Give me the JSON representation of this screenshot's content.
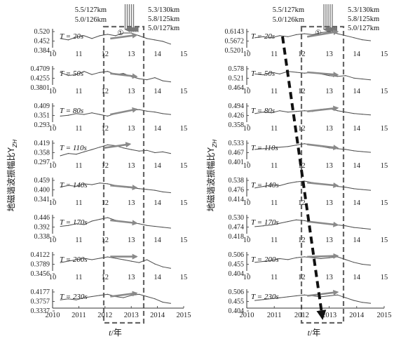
{
  "chart_data": [
    {
      "type": "line",
      "panel": "left",
      "y_axis_label": "地磁谐波振幅比Y",
      "y_axis_subscript": "ZH",
      "x_axis_label_var": "t",
      "x_axis_label_unit": "/年",
      "x_ticks": [
        "10",
        "11",
        "12",
        "13",
        "14",
        "15"
      ],
      "bottom_x_ticks": [
        "2010",
        "2011",
        "2012",
        "2013",
        "2014",
        "2015"
      ],
      "window": [
        2011.9,
        2013.6
      ],
      "circle_label": "①",
      "annotations_left": [
        "5.5/127km",
        "5.0/126km"
      ],
      "annotations_right": [
        "5.3/130km",
        "5.8/125km",
        "5.0/127km"
      ],
      "subplots": [
        {
          "T": "T = 20s",
          "yticks": [
            "0.520",
            "0.452",
            "0.384"
          ],
          "ylim": [
            0.384,
            0.52
          ],
          "x": [
            2010.3,
            2010.6,
            2010.9,
            2011.2,
            2011.5,
            2011.8,
            2012.1,
            2012.4,
            2012.7,
            2013.0,
            2013.3,
            2013.6,
            2013.9,
            2014.2,
            2014.5
          ],
          "y": [
            0.45,
            0.44,
            0.46,
            0.47,
            0.45,
            0.47,
            0.48,
            0.47,
            0.49,
            0.49,
            0.47,
            0.45,
            0.44,
            0.43,
            0.41
          ],
          "arrow": {
            "from": [
              2012.2,
              0.45
            ],
            "to": [
              2013.2,
              0.475
            ]
          }
        },
        {
          "T": "T = 50s",
          "yticks": [
            "0.4709",
            "0.4255",
            "0.3801"
          ],
          "ylim": [
            0.3801,
            0.4709
          ],
          "x": [
            2010.3,
            2010.6,
            2010.9,
            2011.2,
            2011.5,
            2011.8,
            2012.1,
            2012.4,
            2012.7,
            2013.0,
            2013.3,
            2013.6,
            2013.9,
            2014.2,
            2014.5
          ],
          "y": [
            0.44,
            0.425,
            0.43,
            0.445,
            0.43,
            0.44,
            0.445,
            0.43,
            0.435,
            0.42,
            0.41,
            0.405,
            0.415,
            0.4,
            0.395
          ],
          "arrow": {
            "from": [
              2012.2,
              0.435
            ],
            "to": [
              2013.2,
              0.42
            ]
          }
        },
        {
          "T": "T = 80s",
          "yticks": [
            "0.409",
            "0.351",
            "0.293"
          ],
          "ylim": [
            0.293,
            0.409
          ],
          "x": [
            2010.3,
            2010.6,
            2010.9,
            2011.2,
            2011.5,
            2011.8,
            2012.1,
            2012.4,
            2012.7,
            2013.0,
            2013.3,
            2013.6,
            2013.9,
            2014.2,
            2014.5
          ],
          "y": [
            0.33,
            0.335,
            0.345,
            0.34,
            0.35,
            0.34,
            0.33,
            0.345,
            0.355,
            0.365,
            0.37,
            0.36,
            0.355,
            0.345,
            0.34
          ],
          "arrow": {
            "from": [
              2012.2,
              0.34
            ],
            "to": [
              2013.2,
              0.372
            ]
          }
        },
        {
          "T": "T = 110s",
          "yticks": [
            "0.419",
            "0.358",
            "0.297"
          ],
          "ylim": [
            0.297,
            0.419
          ],
          "x": [
            2010.3,
            2010.6,
            2010.9,
            2011.2,
            2011.5,
            2011.8,
            2012.1,
            2012.4,
            2012.7,
            2013.0,
            2013.3,
            2013.6,
            2013.9,
            2014.2,
            2014.5
          ],
          "y": [
            0.32,
            0.335,
            0.33,
            0.345,
            0.36,
            0.375,
            0.39,
            0.385,
            0.37,
            0.36,
            0.35,
            0.355,
            0.34,
            0.345,
            0.335
          ],
          "arrow": {
            "from": [
              2011.95,
              0.37
            ],
            "to": [
              2012.95,
              0.395
            ]
          }
        },
        {
          "T": "T = 140s",
          "yticks": [
            "0.459",
            "0.400",
            "0.341"
          ],
          "ylim": [
            0.341,
            0.459
          ],
          "x": [
            2010.3,
            2010.6,
            2010.9,
            2011.2,
            2011.5,
            2011.8,
            2012.1,
            2012.4,
            2012.7,
            2013.0,
            2013.3,
            2013.6,
            2013.9,
            2014.2,
            2014.5
          ],
          "y": [
            0.4,
            0.41,
            0.405,
            0.42,
            0.415,
            0.425,
            0.42,
            0.41,
            0.4,
            0.395,
            0.39,
            0.385,
            0.38,
            0.37,
            0.365
          ],
          "arrow": {
            "from": [
              2012.2,
              0.41
            ],
            "to": [
              2013.2,
              0.395
            ]
          }
        },
        {
          "T": "T = 170s",
          "yticks": [
            "0.446",
            "0.392",
            "0.338"
          ],
          "ylim": [
            0.338,
            0.446
          ],
          "x": [
            2010.3,
            2010.6,
            2010.9,
            2011.2,
            2011.5,
            2011.8,
            2012.1,
            2012.4,
            2012.7,
            2013.0,
            2013.3,
            2013.6,
            2013.9,
            2014.2,
            2014.5
          ],
          "y": [
            0.38,
            0.385,
            0.395,
            0.39,
            0.41,
            0.42,
            0.43,
            0.415,
            0.405,
            0.4,
            0.395,
            0.385,
            0.38,
            0.375,
            0.37
          ],
          "arrow": {
            "from": [
              2012.2,
              0.415
            ],
            "to": [
              2013.2,
              0.398
            ]
          }
        },
        {
          "T": "T = 200s",
          "yticks": [
            "0.4122",
            "0.3789",
            "0.3456"
          ],
          "ylim": [
            0.3456,
            0.4122
          ],
          "x": [
            2010.3,
            2010.6,
            2010.9,
            2011.2,
            2011.5,
            2011.8,
            2012.1,
            2012.4,
            2012.7,
            2013.0,
            2013.3,
            2013.6,
            2013.9,
            2014.2,
            2014.5
          ],
          "y": [
            0.375,
            0.38,
            0.385,
            0.39,
            0.385,
            0.39,
            0.395,
            0.39,
            0.385,
            0.38,
            0.375,
            0.385,
            0.37,
            0.36,
            0.355
          ],
          "arrow": {
            "from": [
              2012.2,
              0.396
            ],
            "to": [
              2013.2,
              0.396
            ]
          }
        },
        {
          "T": "T = 230s",
          "yticks": [
            "0.4177",
            "0.3757",
            "0.3337"
          ],
          "ylim": [
            0.3337,
            0.4177
          ],
          "x": [
            2010.3,
            2010.6,
            2010.9,
            2011.2,
            2011.5,
            2011.8,
            2012.1,
            2012.4,
            2012.7,
            2013.0,
            2013.3,
            2013.6,
            2013.9,
            2014.2,
            2014.5
          ],
          "y": [
            0.37,
            0.375,
            0.37,
            0.38,
            0.385,
            0.39,
            0.395,
            0.385,
            0.38,
            0.39,
            0.395,
            0.385,
            0.375,
            0.36,
            0.355
          ],
          "arrow": {
            "from": [
              2012.2,
              0.385
            ],
            "to": [
              2013.2,
              0.4
            ]
          }
        }
      ]
    },
    {
      "type": "line",
      "panel": "right",
      "y_axis_label": "地磁谐波振幅比Y",
      "y_axis_subscript": "ZH",
      "x_axis_label_var": "t",
      "x_axis_label_unit": "/年",
      "x_ticks": [
        "10",
        "11",
        "12",
        "13",
        "14",
        "15"
      ],
      "bottom_x_ticks": [
        "2010",
        "2011",
        "2012",
        "2013",
        "2014",
        "2015"
      ],
      "window": [
        2011.9,
        2013.6
      ],
      "circle_label": "①",
      "annotations_left": [
        "5.5/127km",
        "5.0/126km"
      ],
      "annotations_right": [
        "5.3/130km",
        "5.8/125km",
        "5.0/127km"
      ],
      "subplots": [
        {
          "T": "T = 20s",
          "yticks": [
            "0.6143",
            "0.5672",
            "0.5201"
          ],
          "ylim": [
            0.5201,
            0.6143
          ],
          "x": [
            2010.3,
            2010.6,
            2010.9,
            2011.2,
            2011.5,
            2011.8,
            2012.1,
            2012.4,
            2012.7,
            2013.0,
            2013.3,
            2013.6,
            2013.9,
            2014.2,
            2014.5
          ],
          "y": [
            0.57,
            0.575,
            0.57,
            0.58,
            0.575,
            0.585,
            0.59,
            0.585,
            0.595,
            0.6,
            0.59,
            0.58,
            0.57,
            0.56,
            0.555
          ],
          "arrow": {
            "from": [
              2012.2,
              0.575
            ],
            "to": [
              2013.3,
              0.6
            ]
          }
        },
        {
          "T": "T = 50s",
          "yticks": [
            "0.578",
            "0.521",
            "0.464"
          ],
          "ylim": [
            0.464,
            0.578
          ],
          "x": [
            2010.3,
            2010.6,
            2010.9,
            2011.2,
            2011.5,
            2011.8,
            2012.1,
            2012.4,
            2012.7,
            2013.0,
            2013.3,
            2013.6,
            2013.9,
            2014.2,
            2014.5
          ],
          "y": [
            0.53,
            0.525,
            0.54,
            0.53,
            0.545,
            0.54,
            0.535,
            0.54,
            0.53,
            0.52,
            0.515,
            0.52,
            0.505,
            0.5,
            0.495
          ],
          "arrow": {
            "from": [
              2012.2,
              0.54
            ],
            "to": [
              2013.3,
              0.525
            ]
          }
        },
        {
          "T": "T = 80s",
          "yticks": [
            "0.494",
            "0.426",
            "0.358"
          ],
          "ylim": [
            0.358,
            0.494
          ],
          "x": [
            2010.3,
            2010.6,
            2010.9,
            2011.2,
            2011.5,
            2011.8,
            2012.1,
            2012.4,
            2012.7,
            2013.0,
            2013.3,
            2013.6,
            2013.9,
            2014.2,
            2014.5
          ],
          "y": [
            0.42,
            0.43,
            0.425,
            0.44,
            0.43,
            0.435,
            0.44,
            0.435,
            0.45,
            0.455,
            0.44,
            0.43,
            0.42,
            0.415,
            0.41
          ],
          "arrow": {
            "from": [
              2012.2,
              0.435
            ],
            "to": [
              2013.3,
              0.46
            ]
          }
        },
        {
          "T": "T = 110s",
          "yticks": [
            "0.533",
            "0.467",
            "0.401"
          ],
          "ylim": [
            0.401,
            0.533
          ],
          "x": [
            2010.3,
            2010.6,
            2010.9,
            2011.2,
            2011.5,
            2011.8,
            2012.1,
            2012.4,
            2012.7,
            2013.0,
            2013.3,
            2013.6,
            2013.9,
            2014.2,
            2014.5
          ],
          "y": [
            0.47,
            0.475,
            0.48,
            0.485,
            0.49,
            0.5,
            0.51,
            0.5,
            0.49,
            0.48,
            0.475,
            0.47,
            0.46,
            0.455,
            0.45
          ],
          "arrow": {
            "from": [
              2012.2,
              0.505
            ],
            "to": [
              2013.3,
              0.48
            ]
          }
        },
        {
          "T": "T = 140s",
          "yticks": [
            "0.538",
            "0.476",
            "0.414"
          ],
          "ylim": [
            0.414,
            0.538
          ],
          "x": [
            2010.3,
            2010.6,
            2010.9,
            2011.2,
            2011.5,
            2011.8,
            2012.1,
            2012.4,
            2012.7,
            2013.0,
            2013.3,
            2013.6,
            2013.9,
            2014.2,
            2014.5
          ],
          "y": [
            0.47,
            0.48,
            0.49,
            0.485,
            0.5,
            0.51,
            0.515,
            0.505,
            0.495,
            0.49,
            0.48,
            0.475,
            0.465,
            0.46,
            0.455
          ],
          "arrow": {
            "from": [
              2012.2,
              0.505
            ],
            "to": [
              2013.3,
              0.485
            ]
          }
        },
        {
          "T": "T = 170s",
          "yticks": [
            "0.530",
            "0.474",
            "0.418"
          ],
          "ylim": [
            0.418,
            0.53
          ],
          "x": [
            2010.3,
            2010.6,
            2010.9,
            2011.2,
            2011.5,
            2011.8,
            2012.1,
            2012.4,
            2012.7,
            2013.0,
            2013.3,
            2013.6,
            2013.9,
            2014.2,
            2014.5
          ],
          "y": [
            0.46,
            0.465,
            0.47,
            0.48,
            0.49,
            0.5,
            0.495,
            0.485,
            0.48,
            0.475,
            0.47,
            0.465,
            0.455,
            0.45,
            0.445
          ],
          "arrow": {
            "from": [
              2012.2,
              0.49
            ],
            "to": [
              2013.3,
              0.47
            ]
          }
        },
        {
          "T": "T = 200s",
          "yticks": [
            "0.506",
            "0.455",
            "0.404"
          ],
          "ylim": [
            0.404,
            0.506
          ],
          "x": [
            2010.3,
            2010.6,
            2010.9,
            2011.2,
            2011.5,
            2011.8,
            2012.1,
            2012.4,
            2012.7,
            2013.0,
            2013.3,
            2013.6,
            2013.9,
            2014.2,
            2014.5
          ],
          "y": [
            0.45,
            0.455,
            0.46,
            0.47,
            0.465,
            0.475,
            0.48,
            0.475,
            0.47,
            0.475,
            0.48,
            0.465,
            0.45,
            0.44,
            0.435
          ],
          "arrow": {
            "from": [
              2012.2,
              0.48
            ],
            "to": [
              2013.3,
              0.485
            ]
          }
        },
        {
          "T": "T = 230s",
          "yticks": [
            "0.506",
            "0.455",
            "0.404"
          ],
          "ylim": [
            0.404,
            0.506
          ],
          "x": [
            2010.3,
            2010.6,
            2010.9,
            2011.2,
            2011.5,
            2011.8,
            2012.1,
            2012.4,
            2012.7,
            2013.0,
            2013.3,
            2013.6,
            2013.9,
            2014.2,
            2014.5
          ],
          "y": [
            0.445,
            0.45,
            0.455,
            0.46,
            0.465,
            0.47,
            0.475,
            0.47,
            0.465,
            0.47,
            0.475,
            0.46,
            0.445,
            0.435,
            0.43
          ],
          "arrow": {
            "from": [
              2012.2,
              0.47
            ],
            "to": [
              2013.3,
              0.49
            ]
          }
        }
      ],
      "trend_arrow_years": [
        2011.3,
        2012.75
      ]
    }
  ]
}
